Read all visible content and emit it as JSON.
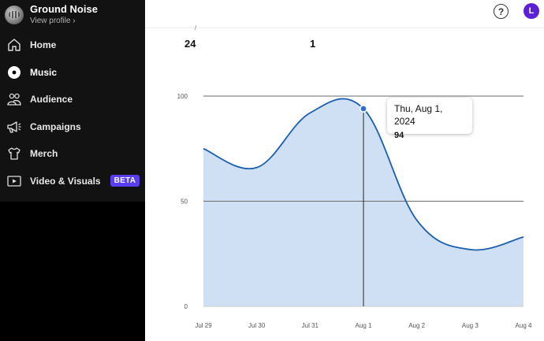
{
  "profile": {
    "name": "Ground Noise",
    "link": "View profile ›"
  },
  "nav": [
    {
      "label": "Home",
      "icon": "home-icon"
    },
    {
      "label": "Music",
      "icon": "music-disc-icon"
    },
    {
      "label": "Audience",
      "icon": "audience-icon"
    },
    {
      "label": "Campaigns",
      "icon": "megaphone-icon"
    },
    {
      "label": "Merch",
      "icon": "tshirt-icon"
    },
    {
      "label": "Video & Visuals",
      "icon": "video-icon",
      "badge": "BETA"
    }
  ],
  "header": {
    "help": "?",
    "user_initial": "L"
  },
  "stats": [
    "24",
    "1"
  ],
  "colors": {
    "line": "#1a5fae",
    "area": "#cfe0f5",
    "badge": "#5a3ff0",
    "user": "#5b1fd6"
  },
  "tooltip": {
    "date": "Thu, Aug 1, 2024",
    "value": "94"
  },
  "chart_data": {
    "type": "area",
    "x": [
      "Jul 29",
      "Jul 30",
      "Jul 31",
      "Aug 1",
      "Aug 2",
      "Aug 3",
      "Aug 4"
    ],
    "values": [
      75,
      66,
      92,
      94,
      41,
      27,
      33
    ],
    "yticks": [
      0,
      50,
      100
    ],
    "ylim": [
      0,
      100
    ],
    "grid": true,
    "highlight_index": 3
  }
}
